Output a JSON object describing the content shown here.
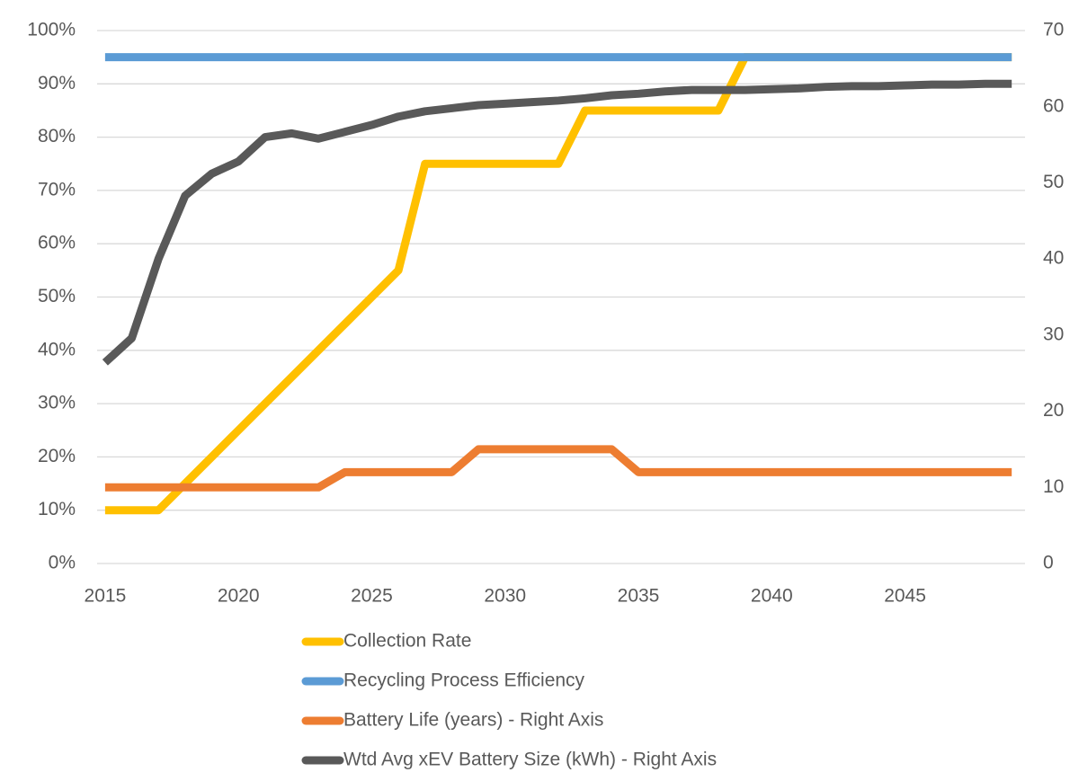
{
  "chart_data": {
    "type": "line",
    "x": [
      2015,
      2016,
      2017,
      2018,
      2019,
      2020,
      2021,
      2022,
      2023,
      2024,
      2025,
      2026,
      2027,
      2028,
      2029,
      2030,
      2031,
      2032,
      2033,
      2034,
      2035,
      2036,
      2037,
      2038,
      2039,
      2040,
      2041,
      2042,
      2043,
      2044,
      2045,
      2046,
      2047,
      2048,
      2049
    ],
    "xlim": [
      2014.7,
      2049.5
    ],
    "xticks": [
      2015,
      2020,
      2025,
      2030,
      2035,
      2040,
      2045
    ],
    "ylim": [
      0,
      100
    ],
    "yticks": [
      {
        "value": 0,
        "label": "0%"
      },
      {
        "value": 10,
        "label": "10%"
      },
      {
        "value": 20,
        "label": "20%"
      },
      {
        "value": 30,
        "label": "30%"
      },
      {
        "value": 40,
        "label": "40%"
      },
      {
        "value": 50,
        "label": "50%"
      },
      {
        "value": 60,
        "label": "60%"
      },
      {
        "value": 70,
        "label": "70%"
      },
      {
        "value": 80,
        "label": "80%"
      },
      {
        "value": 90,
        "label": "90%"
      },
      {
        "value": 100,
        "label": "100%"
      }
    ],
    "y2lim": [
      0,
      70
    ],
    "y2ticks": [
      0,
      10,
      20,
      30,
      40,
      50,
      60,
      70
    ],
    "grid": true,
    "legend": "bottom",
    "series": [
      {
        "name": "Collection Rate",
        "color": "#FFC000",
        "values": [
          10,
          10,
          10,
          15,
          20,
          25,
          30,
          35,
          40,
          45,
          50,
          55,
          75,
          75,
          75,
          75,
          75,
          75,
          85,
          85,
          85,
          85,
          85,
          85,
          95,
          95,
          95,
          95,
          95,
          95,
          95,
          95,
          95,
          95,
          95
        ]
      },
      {
        "name": "Recycling Process Efficiency",
        "color": "#5B9BD5",
        "values": [
          95,
          95,
          95,
          95,
          95,
          95,
          95,
          95,
          95,
          95,
          95,
          95,
          95,
          95,
          95,
          95,
          95,
          95,
          95,
          95,
          95,
          95,
          95,
          95,
          95,
          95,
          95,
          95,
          95,
          95,
          95,
          95,
          95,
          95,
          95
        ]
      },
      {
        "name": "Battery Life (years) - Right Axis",
        "color": "#ED7D31",
        "axis": "y2",
        "values": [
          10,
          10,
          10,
          10,
          10,
          10,
          10,
          10,
          10,
          12,
          12,
          12,
          12,
          12,
          15,
          15,
          15,
          15,
          15,
          15,
          12,
          12,
          12,
          12,
          12,
          12,
          12,
          12,
          12,
          12,
          12,
          12,
          12,
          12,
          12
        ]
      },
      {
        "name": "Wtd Avg xEV Battery Size (kWh) - Right Axis",
        "color": "#595959",
        "axis": "y2",
        "values": [
          26.4,
          29.6,
          40.0,
          48.3,
          51.2,
          52.8,
          56.0,
          56.5,
          55.8,
          56.7,
          57.6,
          58.7,
          59.4,
          59.8,
          60.2,
          60.4,
          60.6,
          60.8,
          61.1,
          61.5,
          61.7,
          62.0,
          62.2,
          62.2,
          62.2,
          62.3,
          62.4,
          62.6,
          62.7,
          62.7,
          62.8,
          62.9,
          62.9,
          63.0,
          63.0
        ]
      }
    ]
  }
}
